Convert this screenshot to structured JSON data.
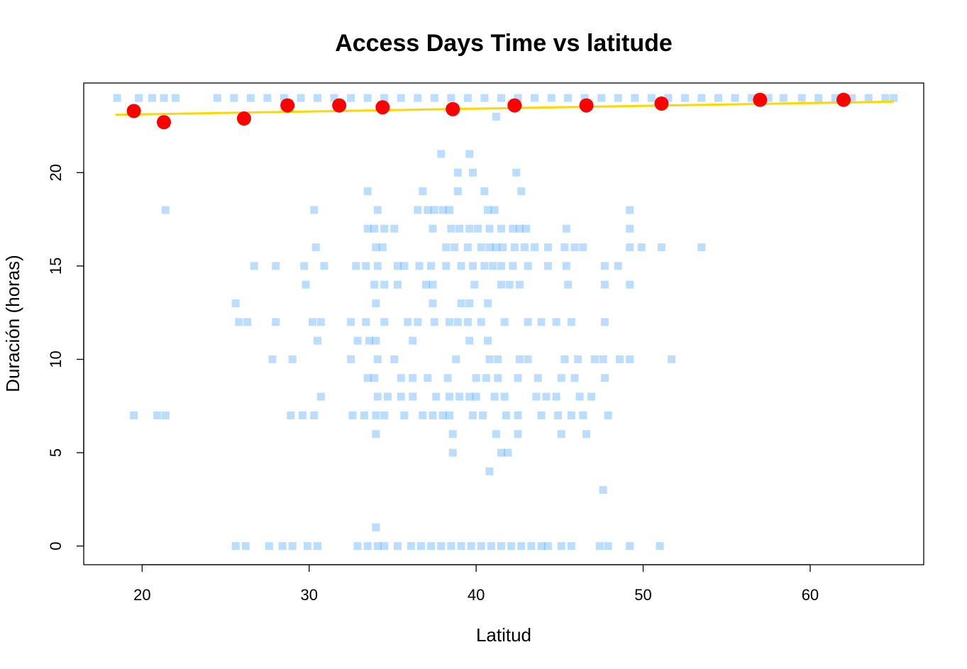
{
  "chart_data": {
    "type": "scatter",
    "title": "Access Days Time vs latitude",
    "xlabel": "Latitud",
    "ylabel": "Duración (horas)",
    "xlim": [
      16.5,
      66.8
    ],
    "ylim": [
      -1,
      24.8
    ],
    "x_ticks": [
      "20",
      "30",
      "40",
      "50",
      "60"
    ],
    "y_ticks": [
      "0",
      "5",
      "10",
      "15",
      "20"
    ],
    "grid": false,
    "legend": "none",
    "colors": {
      "points": "#1E90FF",
      "means": "#FF0000",
      "trend": "#FFD700"
    },
    "series": [
      {
        "kind": "points",
        "points": [
          [
            18.5,
            24
          ],
          [
            19.8,
            24
          ],
          [
            20.6,
            24
          ],
          [
            21.3,
            24
          ],
          [
            22.0,
            24
          ],
          [
            24.5,
            24
          ],
          [
            25.5,
            24
          ],
          [
            26.5,
            24
          ],
          [
            27.5,
            24
          ],
          [
            28.5,
            24
          ],
          [
            29.5,
            24
          ],
          [
            30.5,
            24
          ],
          [
            31.5,
            24
          ],
          [
            32.5,
            24
          ],
          [
            33.5,
            24
          ],
          [
            34.5,
            24
          ],
          [
            35.5,
            24
          ],
          [
            36.5,
            24
          ],
          [
            37.5,
            24
          ],
          [
            38.5,
            24
          ],
          [
            39.5,
            24
          ],
          [
            40.5,
            24
          ],
          [
            41.5,
            24
          ],
          [
            42.5,
            24
          ],
          [
            43.5,
            24
          ],
          [
            44.5,
            24
          ],
          [
            45.5,
            24
          ],
          [
            46.5,
            24
          ],
          [
            47.5,
            24
          ],
          [
            48.5,
            24
          ],
          [
            49.5,
            24
          ],
          [
            50.5,
            24
          ],
          [
            51.5,
            24
          ],
          [
            52.5,
            24
          ],
          [
            53.5,
            24
          ],
          [
            54.5,
            24
          ],
          [
            55.5,
            24
          ],
          [
            56.5,
            24
          ],
          [
            57.5,
            24
          ],
          [
            58.4,
            24
          ],
          [
            59.5,
            24
          ],
          [
            60.5,
            24
          ],
          [
            61.5,
            24
          ],
          [
            62.5,
            24
          ],
          [
            63.5,
            24
          ],
          [
            64.5,
            24
          ],
          [
            65.0,
            24
          ],
          [
            41.2,
            23
          ],
          [
            37.9,
            21
          ],
          [
            39.6,
            21
          ],
          [
            38.9,
            20
          ],
          [
            39.8,
            20
          ],
          [
            42.4,
            20
          ],
          [
            33.5,
            19
          ],
          [
            36.8,
            19
          ],
          [
            38.9,
            19
          ],
          [
            40.5,
            19
          ],
          [
            42.7,
            19
          ],
          [
            21.4,
            18
          ],
          [
            30.3,
            18
          ],
          [
            34.1,
            18
          ],
          [
            36.5,
            18
          ],
          [
            37.1,
            18
          ],
          [
            37.5,
            18
          ],
          [
            38.0,
            18
          ],
          [
            38.4,
            18
          ],
          [
            40.7,
            18
          ],
          [
            41.1,
            18
          ],
          [
            49.2,
            18
          ],
          [
            33.5,
            17
          ],
          [
            33.9,
            17
          ],
          [
            34.5,
            17
          ],
          [
            35.1,
            17
          ],
          [
            37.4,
            17
          ],
          [
            38.5,
            17
          ],
          [
            39.0,
            17
          ],
          [
            39.6,
            17
          ],
          [
            40.1,
            17
          ],
          [
            40.8,
            17
          ],
          [
            41.5,
            17
          ],
          [
            42.2,
            17
          ],
          [
            42.6,
            17
          ],
          [
            43.0,
            17
          ],
          [
            45.4,
            17
          ],
          [
            49.2,
            17
          ],
          [
            30.4,
            16
          ],
          [
            34.0,
            16
          ],
          [
            34.4,
            16
          ],
          [
            38.2,
            16
          ],
          [
            38.7,
            16
          ],
          [
            39.5,
            16
          ],
          [
            40.3,
            16
          ],
          [
            40.8,
            16
          ],
          [
            41.2,
            16
          ],
          [
            41.6,
            16
          ],
          [
            42.3,
            16
          ],
          [
            42.9,
            16
          ],
          [
            43.5,
            16
          ],
          [
            44.3,
            16
          ],
          [
            45.3,
            16
          ],
          [
            45.9,
            16
          ],
          [
            46.4,
            16
          ],
          [
            49.2,
            16
          ],
          [
            49.9,
            16
          ],
          [
            51.1,
            16
          ],
          [
            53.5,
            16
          ],
          [
            26.7,
            15
          ],
          [
            28.0,
            15
          ],
          [
            29.7,
            15
          ],
          [
            30.9,
            15
          ],
          [
            32.8,
            15
          ],
          [
            33.4,
            15
          ],
          [
            34.1,
            15
          ],
          [
            35.3,
            15
          ],
          [
            35.7,
            15
          ],
          [
            36.6,
            15
          ],
          [
            37.3,
            15
          ],
          [
            38.2,
            15
          ],
          [
            39.1,
            15
          ],
          [
            39.8,
            15
          ],
          [
            40.5,
            15
          ],
          [
            41.0,
            15
          ],
          [
            41.5,
            15
          ],
          [
            42.2,
            15
          ],
          [
            43.1,
            15
          ],
          [
            44.3,
            15
          ],
          [
            45.4,
            15
          ],
          [
            47.7,
            15
          ],
          [
            48.5,
            15
          ],
          [
            29.8,
            14
          ],
          [
            33.9,
            14
          ],
          [
            34.5,
            14
          ],
          [
            35.3,
            14
          ],
          [
            37.0,
            14
          ],
          [
            37.4,
            14
          ],
          [
            39.9,
            14
          ],
          [
            41.5,
            14
          ],
          [
            42.0,
            14
          ],
          [
            42.6,
            14
          ],
          [
            45.5,
            14
          ],
          [
            47.7,
            14
          ],
          [
            49.2,
            14
          ],
          [
            25.6,
            13
          ],
          [
            34.0,
            13
          ],
          [
            37.4,
            13
          ],
          [
            39.1,
            13
          ],
          [
            39.6,
            13
          ],
          [
            40.7,
            13
          ],
          [
            25.8,
            12
          ],
          [
            26.3,
            12
          ],
          [
            28.0,
            12
          ],
          [
            30.2,
            12
          ],
          [
            30.7,
            12
          ],
          [
            32.5,
            12
          ],
          [
            33.4,
            12
          ],
          [
            34.5,
            12
          ],
          [
            35.9,
            12
          ],
          [
            36.5,
            12
          ],
          [
            37.5,
            12
          ],
          [
            38.4,
            12
          ],
          [
            38.9,
            12
          ],
          [
            39.5,
            12
          ],
          [
            40.3,
            12
          ],
          [
            41.7,
            12
          ],
          [
            43.1,
            12
          ],
          [
            43.9,
            12
          ],
          [
            44.8,
            12
          ],
          [
            45.7,
            12
          ],
          [
            47.7,
            12
          ],
          [
            30.5,
            11
          ],
          [
            32.9,
            11
          ],
          [
            33.6,
            11
          ],
          [
            34.0,
            11
          ],
          [
            36.2,
            11
          ],
          [
            39.6,
            11
          ],
          [
            40.7,
            11
          ],
          [
            27.8,
            10
          ],
          [
            29.0,
            10
          ],
          [
            32.5,
            10
          ],
          [
            34.1,
            10
          ],
          [
            35.1,
            10
          ],
          [
            38.8,
            10
          ],
          [
            40.8,
            10
          ],
          [
            41.3,
            10
          ],
          [
            42.6,
            10
          ],
          [
            43.1,
            10
          ],
          [
            45.3,
            10
          ],
          [
            46.1,
            10
          ],
          [
            47.1,
            10
          ],
          [
            47.6,
            10
          ],
          [
            48.6,
            10
          ],
          [
            49.2,
            10
          ],
          [
            51.7,
            10
          ],
          [
            33.5,
            9
          ],
          [
            33.9,
            9
          ],
          [
            35.5,
            9
          ],
          [
            36.2,
            9
          ],
          [
            37.1,
            9
          ],
          [
            38.3,
            9
          ],
          [
            40.0,
            9
          ],
          [
            40.6,
            9
          ],
          [
            41.3,
            9
          ],
          [
            42.5,
            9
          ],
          [
            43.7,
            9
          ],
          [
            45.1,
            9
          ],
          [
            45.9,
            9
          ],
          [
            47.7,
            9
          ],
          [
            30.7,
            8
          ],
          [
            34.1,
            8
          ],
          [
            34.7,
            8
          ],
          [
            35.5,
            8
          ],
          [
            36.2,
            8
          ],
          [
            37.6,
            8
          ],
          [
            38.4,
            8
          ],
          [
            39.0,
            8
          ],
          [
            39.6,
            8
          ],
          [
            40.0,
            8
          ],
          [
            41.1,
            8
          ],
          [
            41.7,
            8
          ],
          [
            43.6,
            8
          ],
          [
            44.2,
            8
          ],
          [
            44.8,
            8
          ],
          [
            46.2,
            8
          ],
          [
            46.9,
            8
          ],
          [
            19.5,
            7
          ],
          [
            20.9,
            7
          ],
          [
            21.4,
            7
          ],
          [
            28.9,
            7
          ],
          [
            29.6,
            7
          ],
          [
            30.3,
            7
          ],
          [
            32.6,
            7
          ],
          [
            33.3,
            7
          ],
          [
            34.0,
            7
          ],
          [
            34.5,
            7
          ],
          [
            35.7,
            7
          ],
          [
            36.8,
            7
          ],
          [
            37.4,
            7
          ],
          [
            38.0,
            7
          ],
          [
            38.4,
            7
          ],
          [
            39.8,
            7
          ],
          [
            40.4,
            7
          ],
          [
            41.8,
            7
          ],
          [
            42.5,
            7
          ],
          [
            43.9,
            7
          ],
          [
            44.9,
            7
          ],
          [
            45.7,
            7
          ],
          [
            46.4,
            7
          ],
          [
            47.9,
            7
          ],
          [
            34.0,
            6
          ],
          [
            38.6,
            6
          ],
          [
            41.2,
            6
          ],
          [
            42.5,
            6
          ],
          [
            45.1,
            6
          ],
          [
            46.6,
            6
          ],
          [
            38.6,
            5
          ],
          [
            41.5,
            5
          ],
          [
            41.9,
            5
          ],
          [
            40.8,
            4
          ],
          [
            47.6,
            3
          ],
          [
            34.0,
            1
          ],
          [
            25.6,
            0
          ],
          [
            26.2,
            0
          ],
          [
            27.6,
            0
          ],
          [
            28.4,
            0
          ],
          [
            29.0,
            0
          ],
          [
            29.9,
            0
          ],
          [
            30.5,
            0
          ],
          [
            32.9,
            0
          ],
          [
            33.5,
            0
          ],
          [
            34.1,
            0
          ],
          [
            34.5,
            0
          ],
          [
            35.3,
            0
          ],
          [
            36.1,
            0
          ],
          [
            36.7,
            0
          ],
          [
            37.3,
            0
          ],
          [
            37.9,
            0
          ],
          [
            38.5,
            0
          ],
          [
            39.1,
            0
          ],
          [
            39.7,
            0
          ],
          [
            40.3,
            0
          ],
          [
            40.9,
            0
          ],
          [
            41.5,
            0
          ],
          [
            42.1,
            0
          ],
          [
            42.7,
            0
          ],
          [
            43.3,
            0
          ],
          [
            43.9,
            0
          ],
          [
            44.3,
            0
          ],
          [
            45.1,
            0
          ],
          [
            45.7,
            0
          ],
          [
            47.4,
            0
          ],
          [
            47.9,
            0
          ],
          [
            49.2,
            0
          ],
          [
            51.0,
            0
          ]
        ]
      },
      {
        "kind": "means",
        "points": [
          [
            19.5,
            23.3
          ],
          [
            21.3,
            22.7
          ],
          [
            26.1,
            22.9
          ],
          [
            28.7,
            23.6
          ],
          [
            31.8,
            23.6
          ],
          [
            34.4,
            23.5
          ],
          [
            38.6,
            23.4
          ],
          [
            42.3,
            23.6
          ],
          [
            46.6,
            23.6
          ],
          [
            51.1,
            23.7
          ],
          [
            57.0,
            23.9
          ],
          [
            62.0,
            23.9
          ]
        ]
      },
      {
        "kind": "trend",
        "points": [
          [
            18.4,
            23.1
          ],
          [
            65.0,
            23.8
          ]
        ]
      }
    ]
  }
}
